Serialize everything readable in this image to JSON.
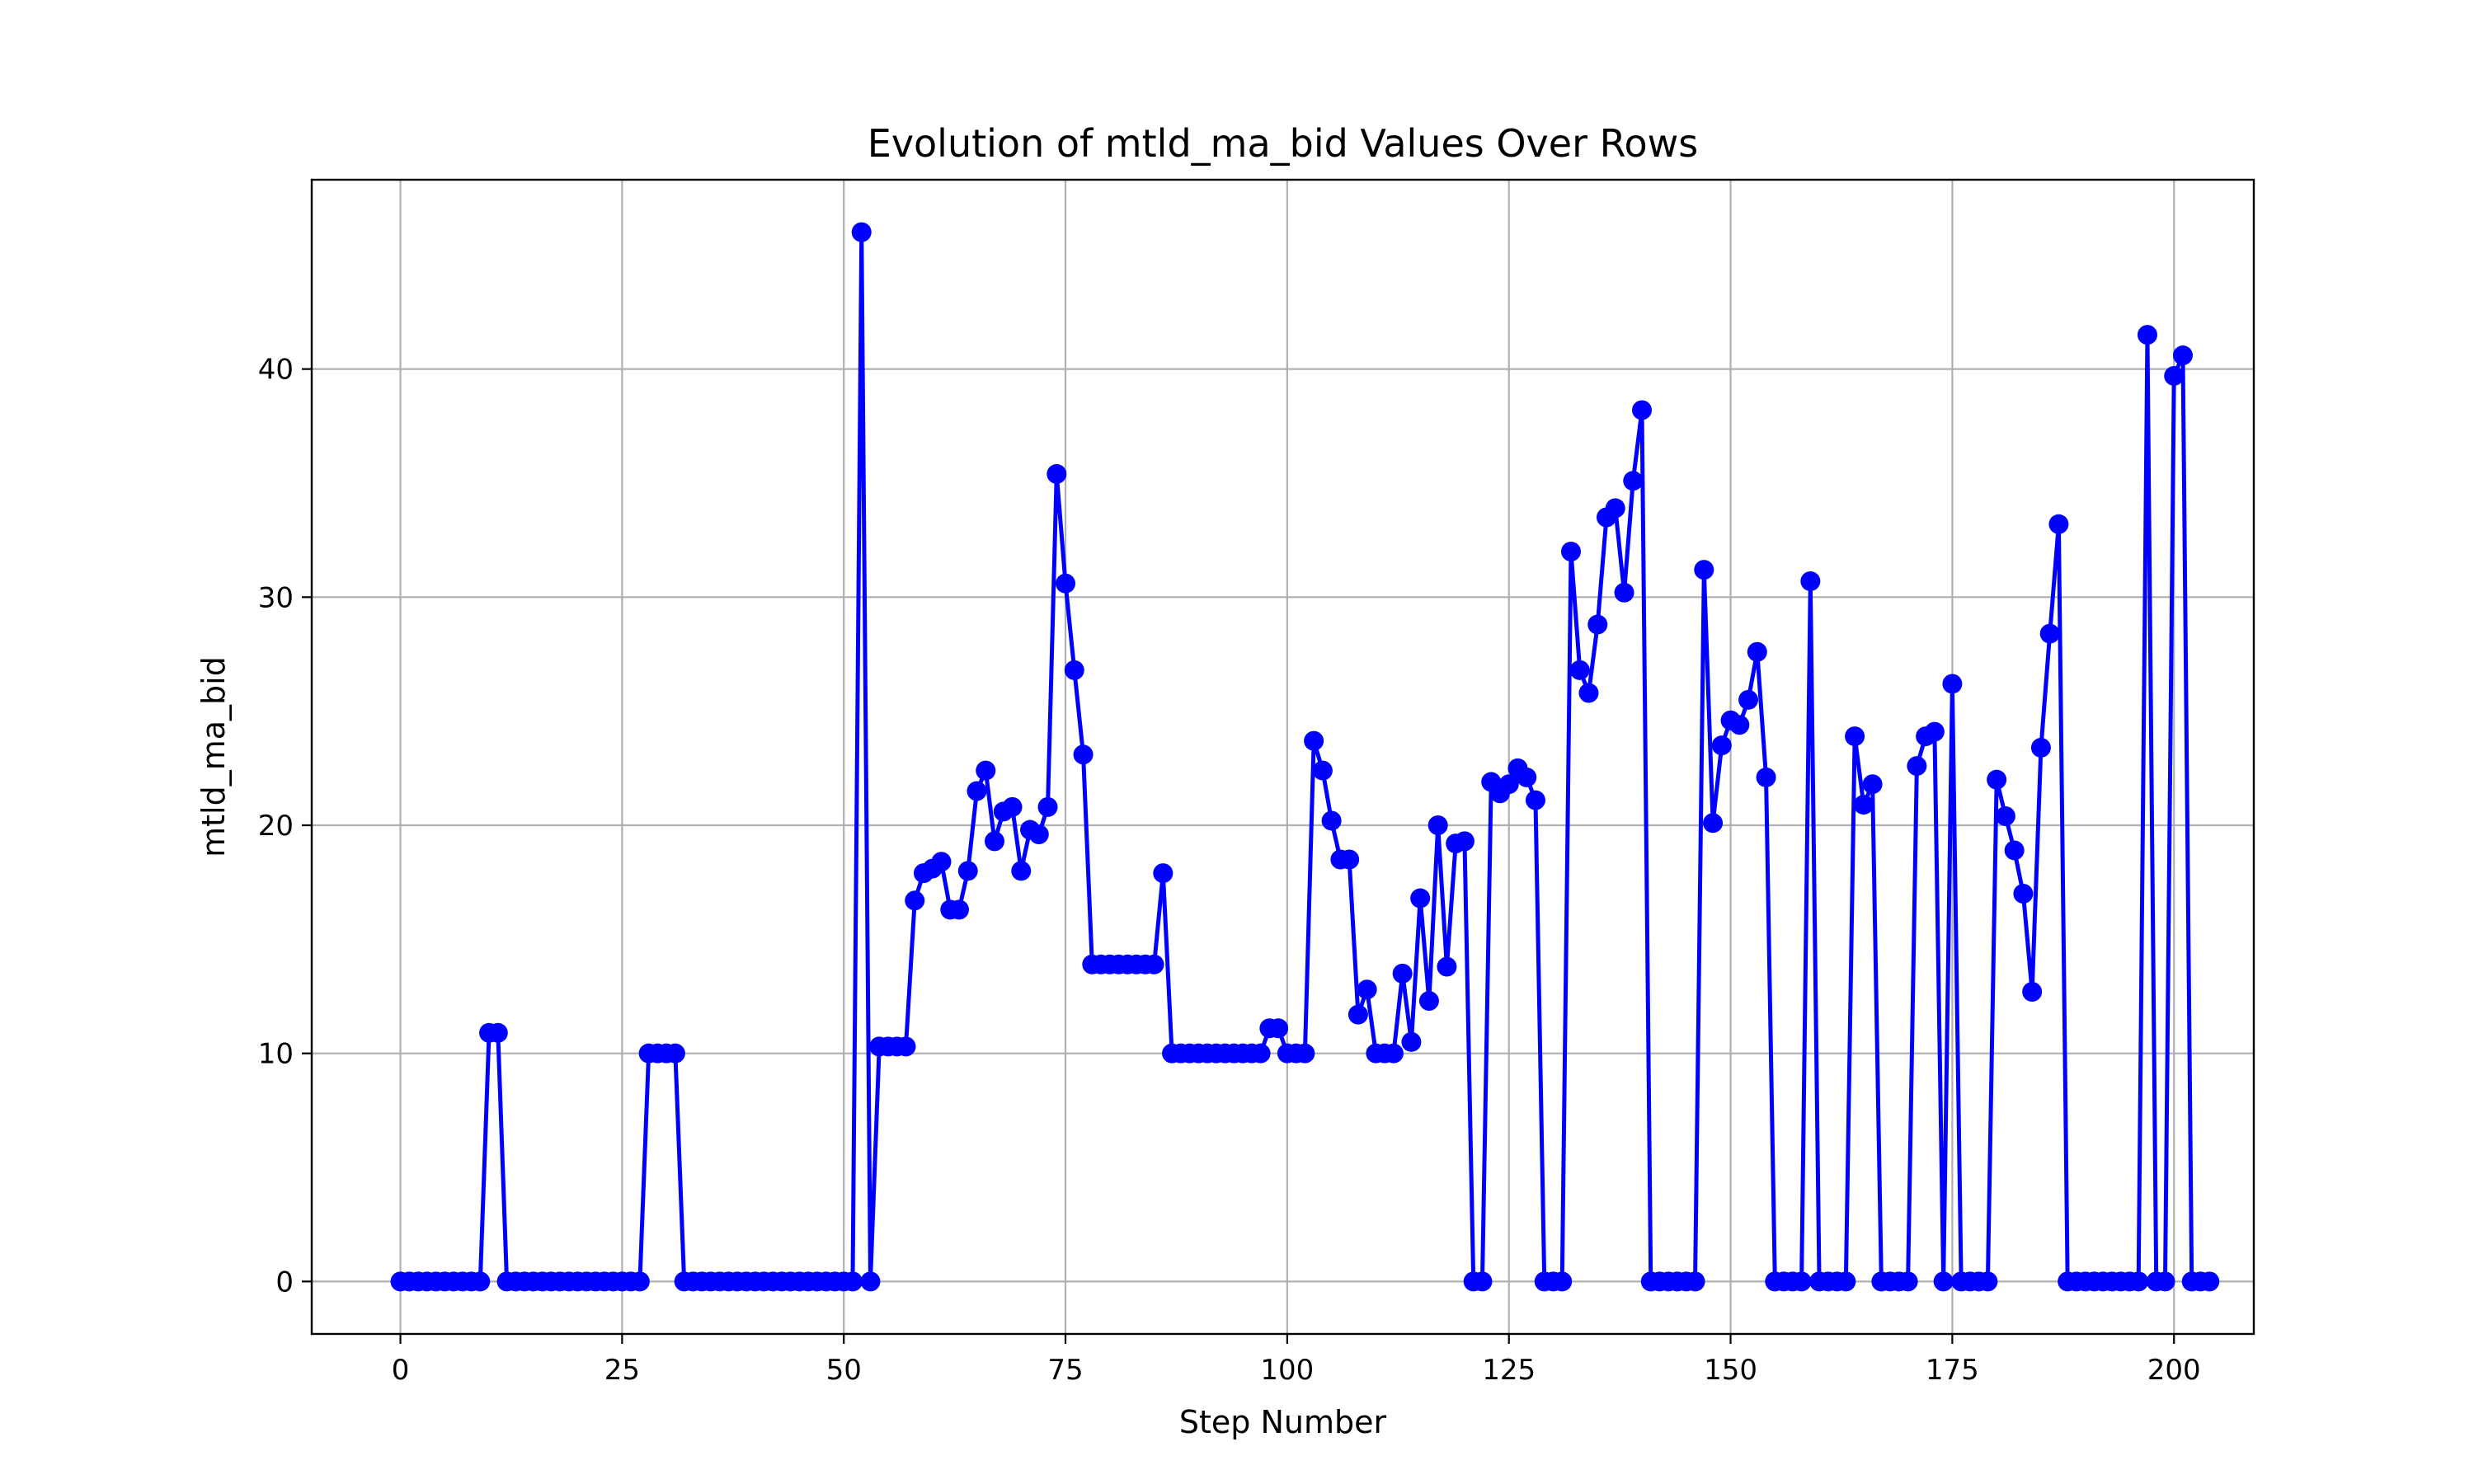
{
  "chart_data": {
    "type": "line",
    "title": "Evolution of mtld_ma_bid Values Over Rows",
    "xlabel": "Step Number",
    "ylabel": "mtld_ma_bid",
    "xlim": [
      -10,
      209
    ],
    "ylim": [
      -2.3,
      48.3
    ],
    "xticks": [
      0,
      25,
      50,
      75,
      100,
      125,
      150,
      175,
      200
    ],
    "yticks": [
      0,
      10,
      20,
      30,
      40
    ],
    "grid": true,
    "series": [
      {
        "color": "#0000ff",
        "marker": "circle",
        "values": [
          0,
          0,
          0,
          0,
          0,
          0,
          0,
          0,
          0,
          0,
          10.9,
          10.9,
          0,
          0,
          0,
          0,
          0,
          0,
          0,
          0,
          0,
          0,
          0,
          0,
          0,
          0,
          0,
          0,
          10,
          10,
          10,
          10,
          0,
          0,
          0,
          0,
          0,
          0,
          0,
          0,
          0,
          0,
          0,
          0,
          0,
          0,
          0,
          0,
          0,
          0,
          0,
          0,
          46,
          0,
          10.3,
          10.3,
          10.3,
          10.3,
          16.7,
          17.9,
          18.1,
          18.4,
          16.3,
          16.3,
          18,
          21.5,
          22.4,
          19.3,
          20.6,
          20.8,
          18,
          19.8,
          19.6,
          20.8,
          35.4,
          30.6,
          26.8,
          23.1,
          13.9,
          13.9,
          13.9,
          13.9,
          13.9,
          13.9,
          13.9,
          13.9,
          17.9,
          10,
          10,
          10,
          10,
          10,
          10,
          10,
          10,
          10,
          10,
          10,
          11.1,
          11.1,
          10,
          10,
          10,
          23.7,
          22.4,
          20.2,
          18.5,
          18.5,
          11.7,
          12.8,
          10,
          10,
          10,
          13.5,
          10.5,
          16.8,
          12.3,
          20,
          13.8,
          19.2,
          19.3,
          0,
          0,
          21.9,
          21.4,
          21.8,
          22.5,
          22.1,
          21.1,
          0,
          0,
          0,
          32,
          26.8,
          25.8,
          28.8,
          33.5,
          33.9,
          30.2,
          35.1,
          38.2,
          0,
          0,
          0,
          0,
          0,
          0,
          31.2,
          20.1,
          23.5,
          24.6,
          24.4,
          25.5,
          27.6,
          22.1,
          0,
          0,
          0,
          0,
          30.7,
          0,
          0,
          0,
          0,
          23.9,
          20.9,
          21.8,
          0,
          0,
          0,
          0,
          22.6,
          23.9,
          24.1,
          0,
          26.2,
          0,
          0,
          0,
          0,
          22,
          20.4,
          18.9,
          17,
          12.7,
          23.4,
          28.4,
          33.2,
          0,
          0,
          0,
          0,
          0,
          0,
          0,
          0,
          0,
          41.5,
          0,
          0,
          39.7,
          40.6,
          0,
          0,
          0
        ]
      }
    ]
  }
}
